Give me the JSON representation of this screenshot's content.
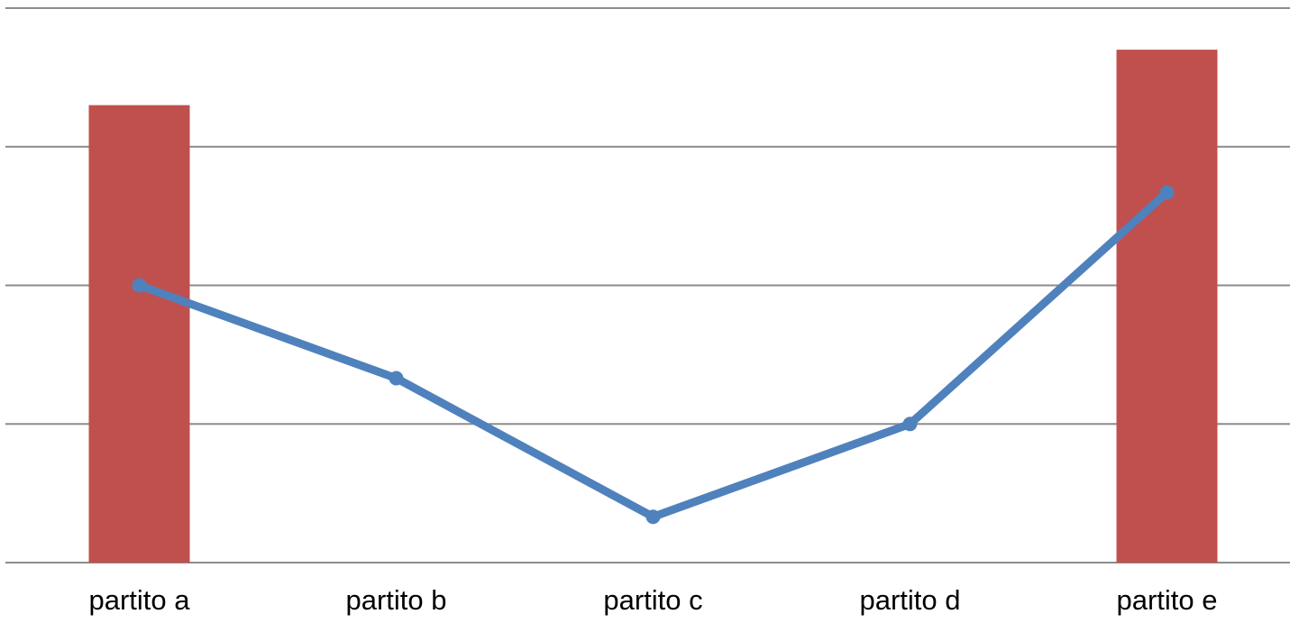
{
  "chart_data": {
    "type": "bar",
    "categories": [
      "partito a",
      "partito b",
      "partito c",
      "partito d",
      "partito e"
    ],
    "series": [
      {
        "type": "bar",
        "values": [
          33,
          0,
          0,
          0,
          37
        ]
      },
      {
        "type": "line",
        "values": [
          20,
          13.3,
          3.3,
          10,
          26.7
        ]
      }
    ],
    "ylim": [
      0,
      40
    ],
    "ytick_count": 5,
    "grid": true,
    "legend": "none",
    "title": "",
    "xlabel": "",
    "ylabel": "",
    "colors": {
      "bar": "#c0504d",
      "line": "#4f81bd",
      "grid": "#8c8c8c"
    }
  }
}
